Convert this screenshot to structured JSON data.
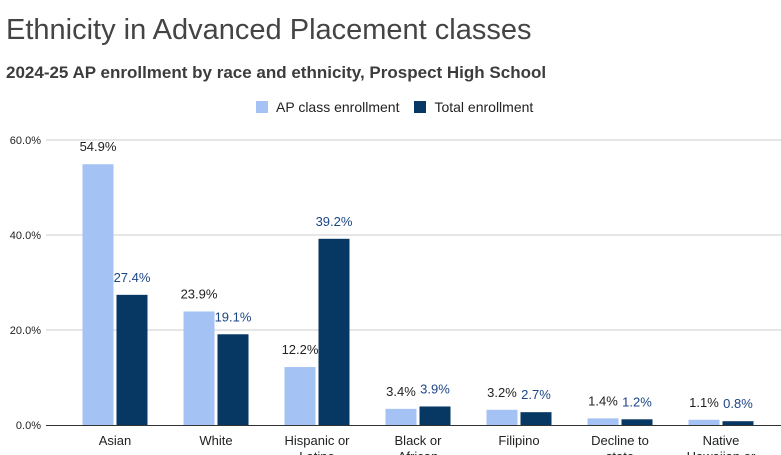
{
  "header": {
    "title": "Ethnicity in Advanced Placement classes",
    "subtitle": "2024-25 AP enrollment by race and ethnicity, Prospect High School"
  },
  "colors": {
    "ap": "#a4c2f4",
    "total": "#073763",
    "total_label": "#1c4587",
    "grid": "#cccccc",
    "axis": "#333333",
    "text": "#222222"
  },
  "chart_data": {
    "type": "bar",
    "title": "Ethnicity in Advanced Placement classes",
    "subtitle": "2024-25 AP enrollment by race and ethnicity, Prospect High School",
    "categories": [
      [
        "Asian"
      ],
      [
        "White"
      ],
      [
        "Hispanic or",
        "Latino"
      ],
      [
        "Black or",
        "African"
      ],
      [
        "Filipino"
      ],
      [
        "Decline to",
        "state"
      ],
      [
        "Native",
        "Hawaiian or"
      ]
    ],
    "series": [
      {
        "name": "AP class enrollment",
        "values": [
          54.9,
          23.9,
          12.2,
          3.4,
          3.2,
          1.4,
          1.1
        ],
        "labels": [
          "54.9%",
          "23.9%",
          "12.2%",
          "3.4%",
          "3.2%",
          "1.4%",
          "1.1%"
        ]
      },
      {
        "name": "Total enrollment",
        "values": [
          27.4,
          19.1,
          39.2,
          3.9,
          2.7,
          1.2,
          0.8
        ],
        "labels": [
          "27.4%",
          "19.1%",
          "39.2%",
          "3.9%",
          "2.7%",
          "1.2%",
          "0.8%"
        ]
      }
    ],
    "yticks": [
      0,
      20,
      40,
      60
    ],
    "ytick_labels": [
      "0.0%",
      "20.0%",
      "40.0%",
      "60.0%"
    ],
    "ylim": [
      0,
      60
    ],
    "grid": true,
    "legend_position": "top-center"
  }
}
